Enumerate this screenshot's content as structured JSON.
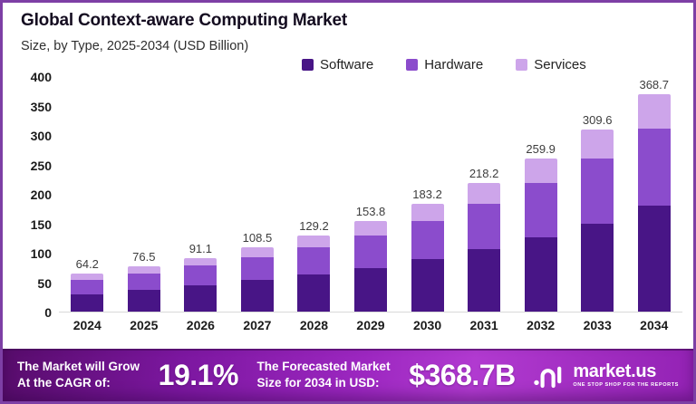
{
  "frame": {
    "border_color": "#7d3fa5",
    "background": "#ffffff"
  },
  "header": {
    "title": "Global Context-aware Computing Market",
    "subtitle": "Size, by Type, 2025-2034 (USD Billion)"
  },
  "chart_data": {
    "type": "bar",
    "stacked": true,
    "title": "Global Context-aware Computing Market",
    "subtitle": "Size, by Type, 2025-2034 (USD Billion)",
    "xlabel": "",
    "ylabel": "",
    "grid": false,
    "legend_position": "top",
    "ylim": [
      0,
      400
    ],
    "yticks": [
      0,
      50,
      100,
      150,
      200,
      250,
      300,
      350,
      400
    ],
    "categories": [
      "2024",
      "2025",
      "2026",
      "2027",
      "2028",
      "2029",
      "2030",
      "2031",
      "2032",
      "2033",
      "2034"
    ],
    "totals": [
      64.2,
      76.5,
      91.1,
      108.5,
      129.2,
      153.8,
      183.2,
      218.2,
      259.9,
      309.6,
      368.7
    ],
    "series": [
      {
        "name": "Software",
        "color": "#481586",
        "values": [
          30.0,
          37.0,
          45.0,
          53.5,
          63.0,
          74.5,
          89.5,
          106.0,
          127.0,
          150.0,
          180.0
        ]
      },
      {
        "name": "Hardware",
        "color": "#8b4ccc",
        "values": [
          24.0,
          27.5,
          33.0,
          39.5,
          46.5,
          55.0,
          65.0,
          77.5,
          91.0,
          109.5,
          131.0
        ]
      },
      {
        "name": "Services",
        "color": "#cda5ea",
        "values": [
          10.2,
          12.0,
          13.1,
          15.5,
          19.7,
          24.3,
          28.7,
          34.7,
          41.9,
          50.1,
          57.7
        ]
      }
    ],
    "axis_line_color": "#d9d9d9",
    "value_label_color": "#3d3d3d"
  },
  "banner": {
    "cagr_label_line1": "The Market will Grow",
    "cagr_label_line2": "At the CAGR of:",
    "cagr_value": "19.1%",
    "forecast_label_line1": "The Forecasted Market",
    "forecast_label_line2": "Size for 2034 in USD:",
    "forecast_value": "$368.7B",
    "brand_name": "market.us",
    "brand_tagline": "ONE STOP SHOP FOR THE REPORTS",
    "gradient_colors": [
      "#570c6b",
      "#7c17a0",
      "#9c27c0",
      "#b13ad0",
      "#9322b4"
    ]
  }
}
